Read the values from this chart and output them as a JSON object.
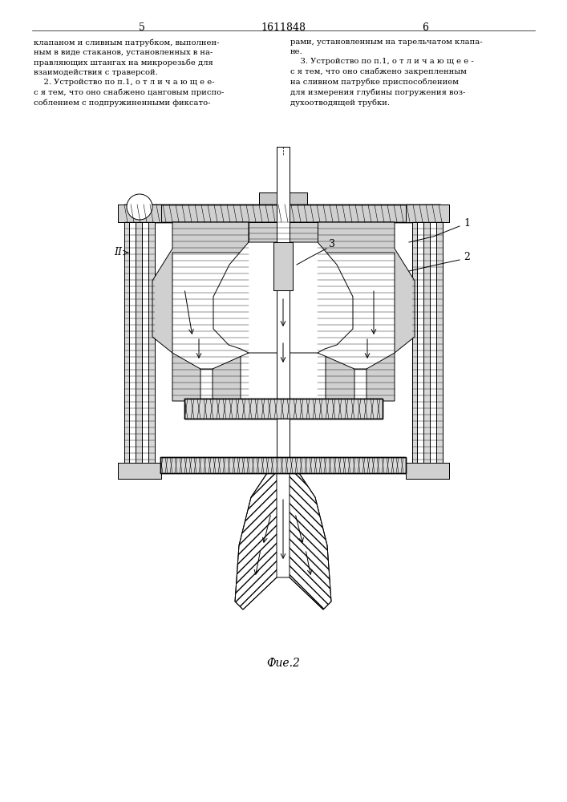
{
  "page_number_left": "5",
  "page_number_center": "1611848",
  "page_number_right": "6",
  "text_left_col": "клапаном и сливным патрубком, выполнен-\nным в виде стаканов, установленных в на-\nправляющих штангах на микрорезьбе для\nвзаимодействия с траверсой.\n    2. Устройство по п.1, о т л и ч а ю щ е е-\nс я тем, что оно снабжено цанговым приспо-\nсоблением с подпружиненными фиксато-",
  "text_right_col": "рами, установленным на тарельчатом клапа-\nне.\n    3. Устройство по п.1, о т л и ч а ю щ е е -\nс я тем, что оно снабжено закрепленным\nна сливном патрубке приспособлением\nдля измерения глубины погружения воз-\nдухоотводящей трубки.",
  "figure_caption": "Фие.2",
  "bg_color": "#ffffff",
  "line_color": "#000000",
  "hatch_color": "#000000",
  "label_II": "II",
  "label_1": "1",
  "label_2": "2",
  "label_3": "3"
}
